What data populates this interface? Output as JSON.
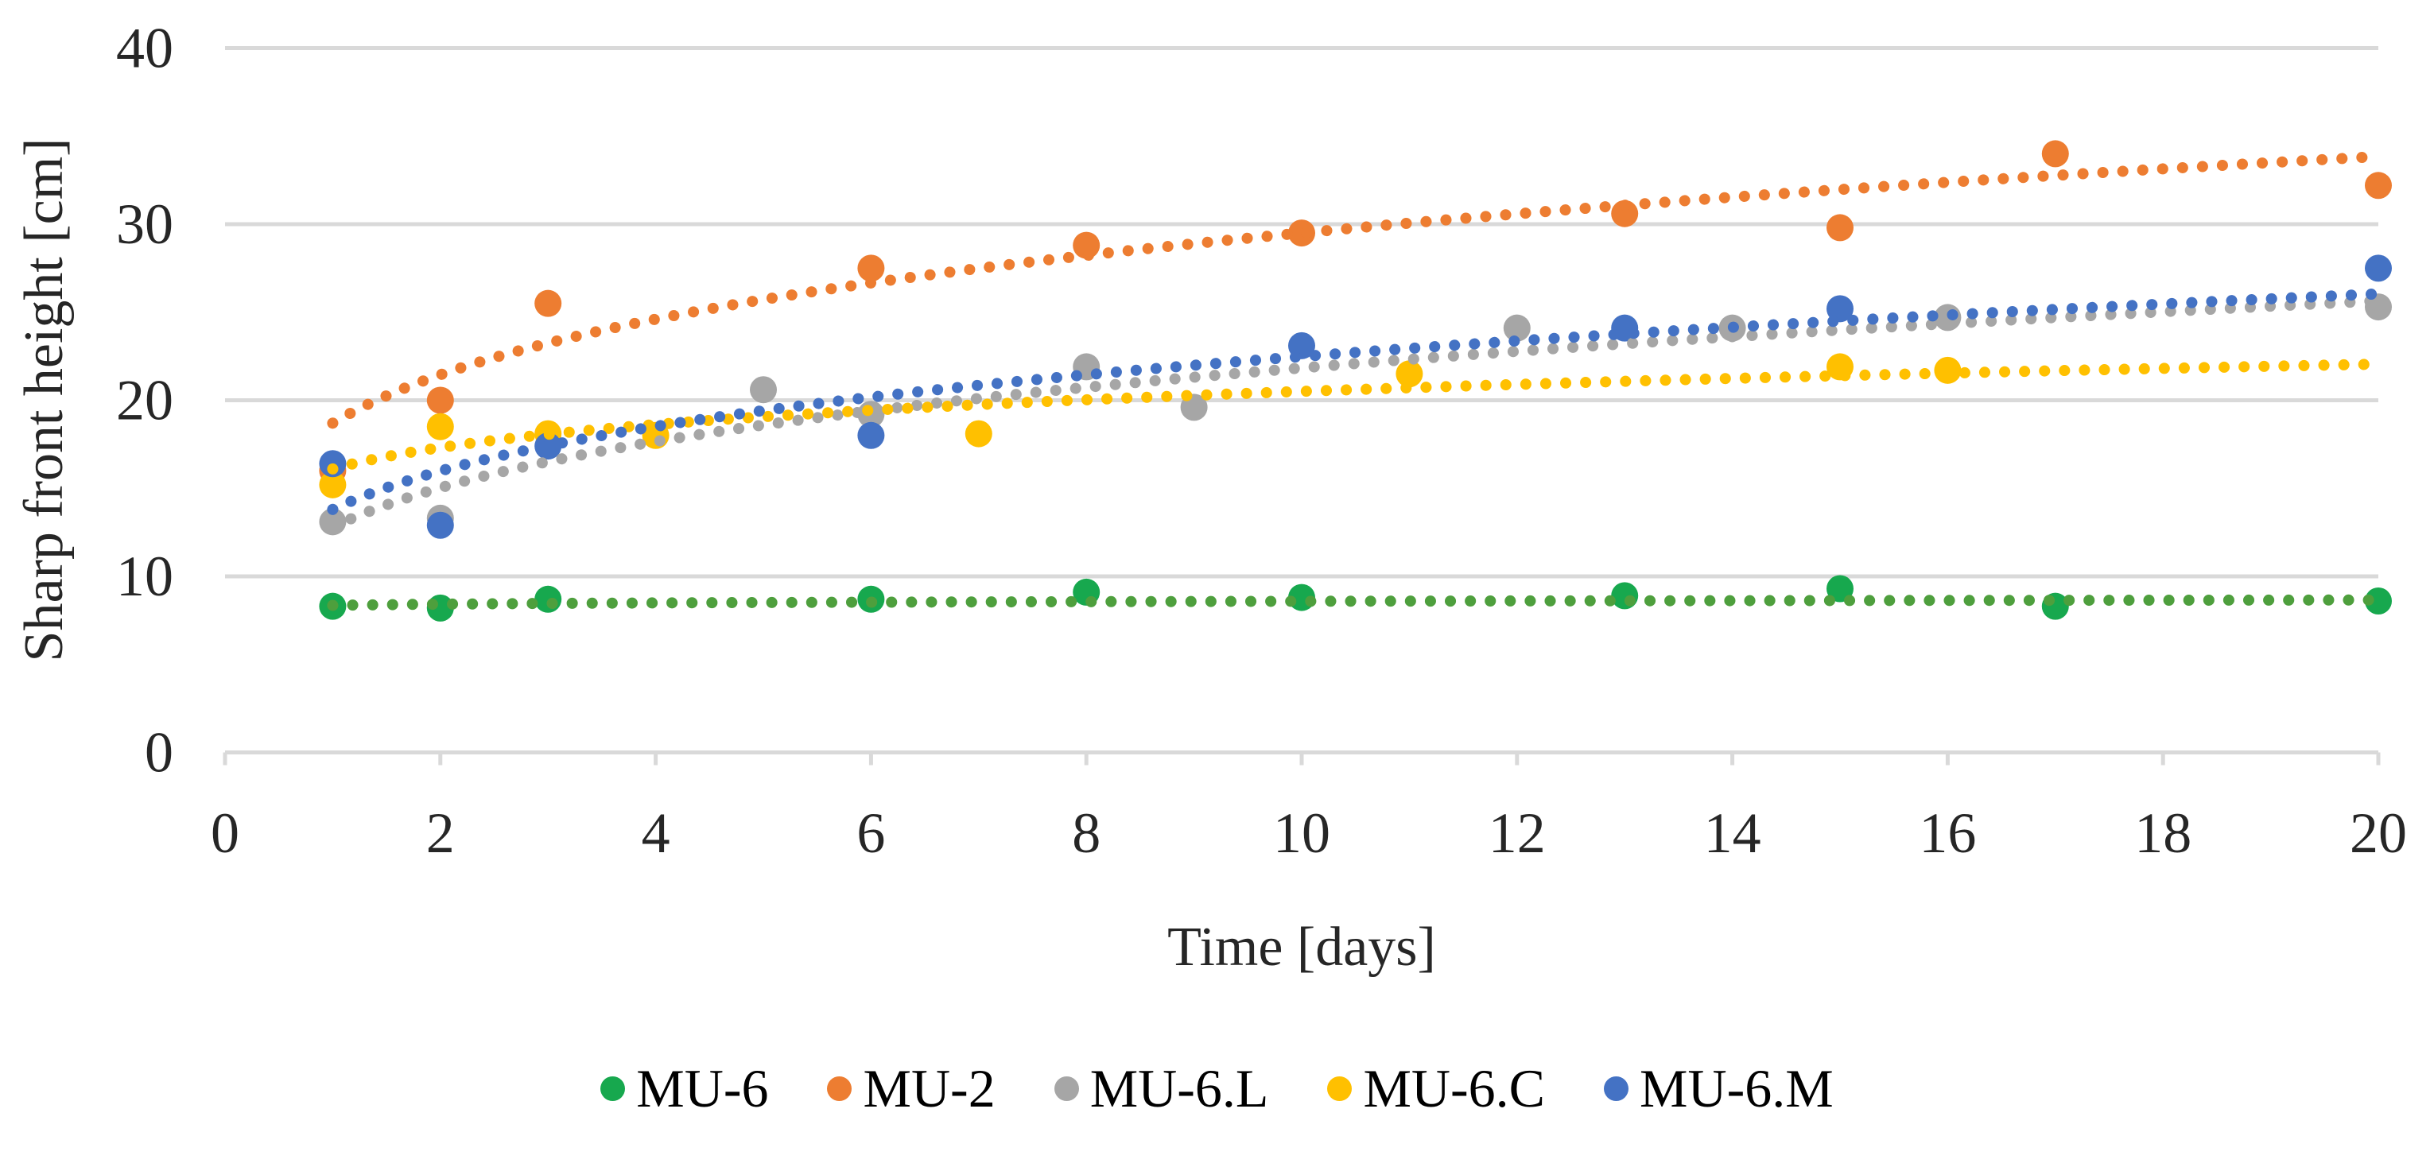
{
  "chart_data": {
    "type": "scatter",
    "title": "",
    "xlabel": "Time [days]",
    "ylabel": "Sharp front height [cm]",
    "xlim": [
      0,
      20
    ],
    "ylim": [
      0,
      40
    ],
    "x_ticks": [
      0,
      2,
      4,
      6,
      8,
      10,
      12,
      14,
      16,
      18,
      20
    ],
    "y_ticks": [
      0,
      10,
      20,
      30,
      40
    ],
    "grid": "horizontal-only",
    "gridline_color": "#D9D9D9",
    "tick_color": "#D9D9D9",
    "legend_position": "bottom-center",
    "marker_style": "filled-circle",
    "trendline_style": "dotted-power-fit",
    "series": [
      {
        "name": "MU-6",
        "color": "#17A84E",
        "trend_color": "#4E9F3D",
        "points": [
          [
            1,
            8.3
          ],
          [
            2,
            8.2
          ],
          [
            3,
            8.7
          ],
          [
            6,
            8.7
          ],
          [
            8,
            9.1
          ],
          [
            10,
            8.8
          ],
          [
            13,
            8.9
          ],
          [
            15,
            9.3
          ],
          [
            17,
            8.3
          ],
          [
            20,
            8.6
          ]
        ],
        "trend": {
          "type": "power",
          "a": 8.35,
          "b": 0.012
        }
      },
      {
        "name": "MU-2",
        "color": "#ED7D31",
        "trend_color": "#ED7D31",
        "points": [
          [
            1,
            16.0
          ],
          [
            2,
            20.0
          ],
          [
            3,
            25.5
          ],
          [
            6,
            27.5
          ],
          [
            8,
            28.8
          ],
          [
            10,
            29.5
          ],
          [
            13,
            30.6
          ],
          [
            15,
            29.8
          ],
          [
            17,
            34.0
          ],
          [
            20,
            32.2
          ]
        ],
        "trend": {
          "type": "power",
          "a": 18.7,
          "b": 0.198
        }
      },
      {
        "name": "MU-6.L",
        "color": "#A6A6A6",
        "trend_color": "#A6A6A6",
        "points": [
          [
            1,
            13.1
          ],
          [
            2,
            13.3
          ],
          [
            5,
            20.6
          ],
          [
            6,
            19.2
          ],
          [
            8,
            21.9
          ],
          [
            9,
            19.6
          ],
          [
            12,
            24.1
          ],
          [
            14,
            24.1
          ],
          [
            16,
            24.7
          ],
          [
            20,
            25.3
          ]
        ],
        "trend": {
          "type": "power",
          "a": 12.8,
          "b": 0.232
        }
      },
      {
        "name": "MU-6.C",
        "color": "#FFC000",
        "trend_color": "#FFC000",
        "points": [
          [
            1,
            15.2
          ],
          [
            2,
            18.5
          ],
          [
            3,
            18.1
          ],
          [
            4,
            18.0
          ],
          [
            7,
            18.1
          ],
          [
            11,
            21.5
          ],
          [
            15,
            21.9
          ],
          [
            16,
            21.7
          ]
        ],
        "trend": {
          "type": "power",
          "a": 16.1,
          "b": 0.105
        }
      },
      {
        "name": "MU-6.M",
        "color": "#4472C4",
        "trend_color": "#4472C4",
        "points": [
          [
            1,
            16.4
          ],
          [
            2,
            12.9
          ],
          [
            3,
            17.4
          ],
          [
            6,
            18.0
          ],
          [
            10,
            23.1
          ],
          [
            13,
            24.1
          ],
          [
            15,
            25.2
          ],
          [
            20,
            27.5
          ]
        ],
        "trend": {
          "type": "power",
          "a": 13.8,
          "b": 0.212
        }
      }
    ]
  }
}
